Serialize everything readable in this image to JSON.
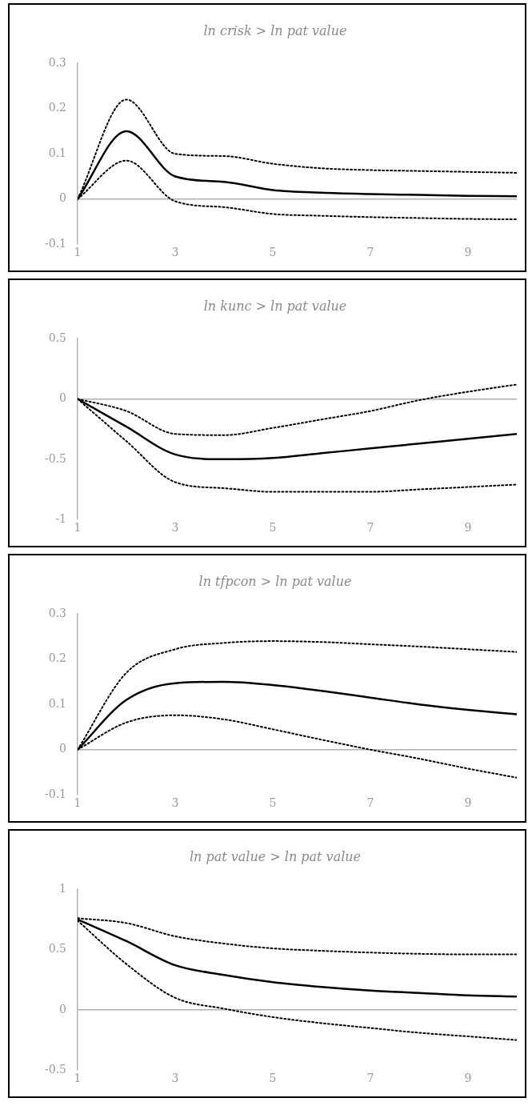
{
  "chart_data": [
    {
      "type": "line",
      "title": "ln crisk > ln pat value",
      "x": [
        1,
        2,
        3,
        4,
        5,
        6,
        7,
        8,
        9,
        10
      ],
      "xlim": [
        1,
        10
      ],
      "xticks": [
        1,
        3,
        5,
        7,
        9
      ],
      "ylim": [
        -0.1,
        0.3
      ],
      "yticks": [
        -0.1,
        0,
        0.1,
        0.2,
        0.3
      ],
      "marker": "none",
      "series": [
        {
          "color": "#000000",
          "line_style": "solid",
          "values": [
            0,
            0.15,
            0.05,
            0.038,
            0.02,
            0.014,
            0.011,
            0.009,
            0.007,
            0.006
          ]
        },
        {
          "color": "#000000",
          "line_style": "dotted",
          "values": [
            0,
            0.22,
            0.1,
            0.095,
            0.078,
            0.068,
            0.064,
            0.062,
            0.06,
            0.058
          ]
        },
        {
          "color": "#000000",
          "line_style": "dotted",
          "values": [
            0,
            0.085,
            -0.005,
            -0.018,
            -0.033,
            -0.037,
            -0.04,
            -0.042,
            -0.044,
            -0.045
          ]
        }
      ]
    },
    {
      "type": "line",
      "title": "ln kunc > ln pat value",
      "x": [
        1,
        2,
        3,
        4,
        5,
        6,
        7,
        8,
        9,
        10
      ],
      "xlim": [
        1,
        10
      ],
      "xticks": [
        1,
        3,
        5,
        7,
        9
      ],
      "ylim": [
        -1,
        0.5
      ],
      "yticks": [
        -1,
        -0.5,
        0,
        0.5
      ],
      "marker": "none",
      "series": [
        {
          "color": "#000000",
          "line_style": "solid",
          "values": [
            0,
            -0.23,
            -0.46,
            -0.5,
            -0.49,
            -0.45,
            -0.41,
            -0.37,
            -0.33,
            -0.29
          ]
        },
        {
          "color": "#000000",
          "line_style": "dotted",
          "values": [
            0,
            -0.1,
            -0.29,
            -0.3,
            -0.24,
            -0.17,
            -0.1,
            -0.01,
            0.06,
            0.12
          ]
        },
        {
          "color": "#000000",
          "line_style": "dotted",
          "values": [
            0,
            -0.35,
            -0.69,
            -0.74,
            -0.77,
            -0.77,
            -0.77,
            -0.75,
            -0.73,
            -0.71
          ]
        }
      ]
    },
    {
      "type": "line",
      "title": "ln tfpcon > ln pat value",
      "x": [
        1,
        2,
        3,
        4,
        5,
        6,
        7,
        8,
        9,
        10
      ],
      "xlim": [
        1,
        10
      ],
      "xticks": [
        1,
        3,
        5,
        7,
        9
      ],
      "ylim": [
        -0.1,
        0.3
      ],
      "yticks": [
        -0.1,
        0,
        0.1,
        0.2,
        0.3
      ],
      "marker": "none",
      "series": [
        {
          "color": "#000000",
          "line_style": "solid",
          "values": [
            0,
            0.11,
            0.147,
            0.15,
            0.143,
            0.13,
            0.115,
            0.1,
            0.088,
            0.078
          ]
        },
        {
          "color": "#000000",
          "line_style": "dotted",
          "values": [
            0,
            0.17,
            0.222,
            0.236,
            0.24,
            0.238,
            0.233,
            0.228,
            0.222,
            0.216
          ]
        },
        {
          "color": "#000000",
          "line_style": "dotted",
          "values": [
            0,
            0.06,
            0.076,
            0.067,
            0.045,
            0.022,
            0,
            -0.02,
            -0.042,
            -0.062
          ]
        }
      ]
    },
    {
      "type": "line",
      "title": "ln pat value > ln pat value",
      "x": [
        1,
        2,
        3,
        4,
        5,
        6,
        7,
        8,
        9,
        10
      ],
      "xlim": [
        1,
        10
      ],
      "xticks": [
        1,
        3,
        5,
        7,
        9
      ],
      "ylim": [
        -0.5,
        1
      ],
      "yticks": [
        -0.5,
        0,
        0.5,
        1
      ],
      "marker": "none",
      "series": [
        {
          "color": "#000000",
          "line_style": "solid",
          "values": [
            0.75,
            0.57,
            0.37,
            0.29,
            0.23,
            0.19,
            0.16,
            0.14,
            0.12,
            0.11
          ]
        },
        {
          "color": "#000000",
          "line_style": "dotted",
          "values": [
            0.76,
            0.72,
            0.61,
            0.55,
            0.51,
            0.49,
            0.475,
            0.465,
            0.46,
            0.46
          ]
        },
        {
          "color": "#000000",
          "line_style": "dotted",
          "values": [
            0.74,
            0.38,
            0.1,
            0.01,
            -0.06,
            -0.11,
            -0.15,
            -0.19,
            -0.22,
            -0.25
          ]
        }
      ]
    }
  ]
}
